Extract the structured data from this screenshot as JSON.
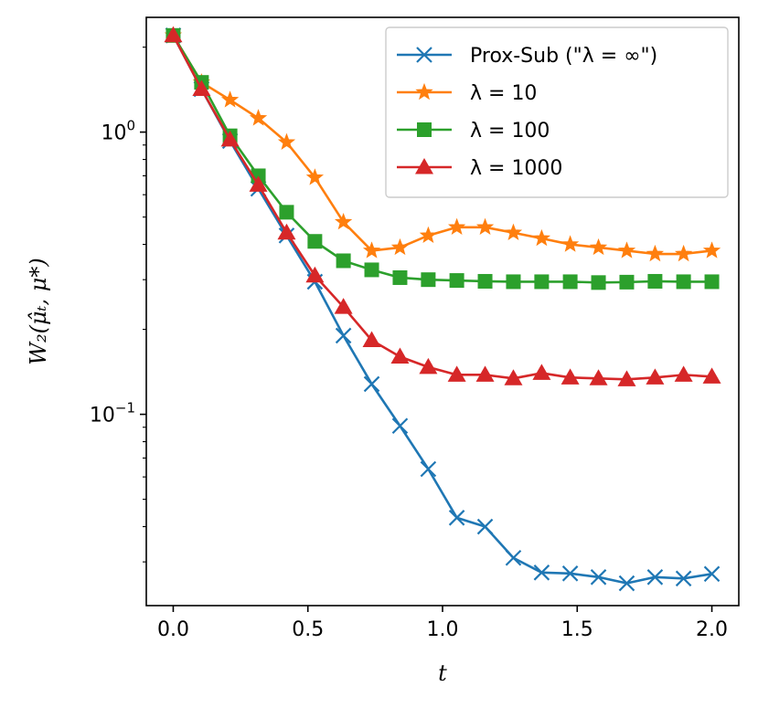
{
  "chart_data": {
    "type": "line",
    "yscale": "log",
    "title": "",
    "xlabel": "t",
    "ylabel": "W₂(μ̂ₜ, μ*)",
    "xlim": [
      -0.1,
      2.1
    ],
    "ylim": [
      0.021,
      2.55
    ],
    "x_ticks": [
      0.0,
      0.5,
      1.0,
      1.5,
      2.0
    ],
    "x_tick_labels": [
      "0.0",
      "0.5",
      "1.0",
      "1.5",
      "2.0"
    ],
    "y_major_ticks": [
      {
        "value": 0.1,
        "base": "10",
        "exp": "−1"
      },
      {
        "value": 1.0,
        "base": "10",
        "exp": "0"
      }
    ],
    "legend_position": "top-right",
    "x": [
      0.0,
      0.105,
      0.211,
      0.316,
      0.421,
      0.526,
      0.632,
      0.737,
      0.842,
      0.947,
      1.053,
      1.158,
      1.263,
      1.368,
      1.474,
      1.579,
      1.684,
      1.789,
      1.895,
      2.0
    ],
    "series": [
      {
        "name": "Prox-Sub (\"λ = ∞\")",
        "color": "#1f77b4",
        "marker": "x",
        "values": [
          2.2,
          1.42,
          0.93,
          0.63,
          0.43,
          0.295,
          0.19,
          0.128,
          0.091,
          0.064,
          0.043,
          0.04,
          0.031,
          0.0275,
          0.0273,
          0.0265,
          0.0252,
          0.0265,
          0.0262,
          0.0272
        ]
      },
      {
        "name": "λ =  10",
        "color": "#ff7f0e",
        "marker": "star",
        "values": [
          2.2,
          1.5,
          1.3,
          1.12,
          0.92,
          0.69,
          0.48,
          0.38,
          0.39,
          0.43,
          0.46,
          0.46,
          0.44,
          0.42,
          0.4,
          0.39,
          0.38,
          0.37,
          0.37,
          0.38
        ]
      },
      {
        "name": "λ =  100",
        "color": "#2ca02c",
        "marker": "square",
        "values": [
          2.2,
          1.5,
          0.97,
          0.7,
          0.52,
          0.41,
          0.35,
          0.325,
          0.305,
          0.3,
          0.298,
          0.296,
          0.295,
          0.295,
          0.295,
          0.293,
          0.294,
          0.296,
          0.295,
          0.295
        ]
      },
      {
        "name": "λ =  1000",
        "color": "#d62728",
        "marker": "triangle",
        "values": [
          2.2,
          1.42,
          0.94,
          0.65,
          0.44,
          0.31,
          0.24,
          0.183,
          0.16,
          0.147,
          0.138,
          0.138,
          0.134,
          0.14,
          0.135,
          0.134,
          0.133,
          0.135,
          0.138,
          0.136
        ]
      }
    ]
  }
}
